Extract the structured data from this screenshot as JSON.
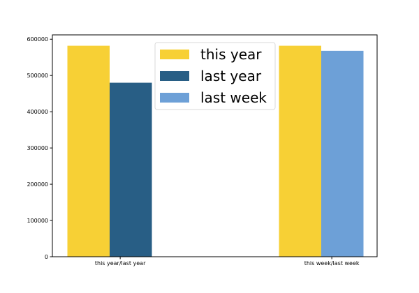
{
  "chart_data": {
    "type": "bar",
    "groups": [
      {
        "label": "this year/last year",
        "bars": [
          {
            "series": "this year",
            "value": 582000
          },
          {
            "series": "last year",
            "value": 480000
          }
        ]
      },
      {
        "label": "this week/last week",
        "bars": [
          {
            "series": "this year",
            "value": 582000
          },
          {
            "series": "last week",
            "value": 568000
          }
        ]
      }
    ],
    "series": [
      {
        "name": "this year",
        "color": "#F7D035"
      },
      {
        "name": "last year",
        "color": "#285E85"
      },
      {
        "name": "last week",
        "color": "#6DA0D7"
      }
    ],
    "ylim": [
      0,
      612000
    ],
    "yticks": [
      0,
      100000,
      200000,
      300000,
      400000,
      500000,
      600000
    ],
    "legend_position": "top-center",
    "grid": false,
    "title": "",
    "xlabel": "",
    "ylabel": ""
  }
}
